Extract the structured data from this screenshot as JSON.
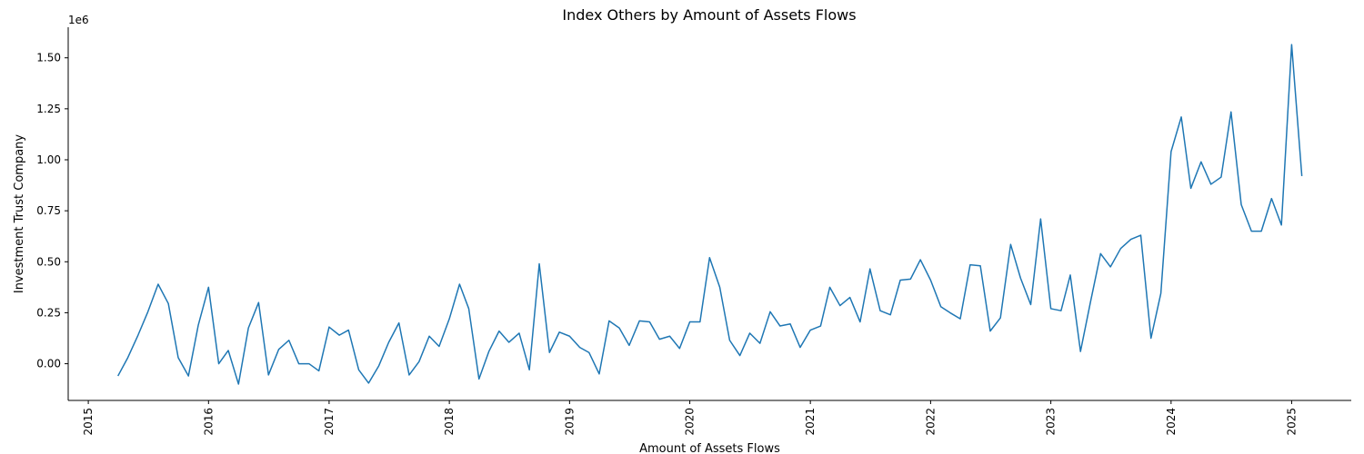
{
  "chart_data": {
    "type": "line",
    "title": "Index Others by Amount of Assets Flows",
    "xlabel": "Amount of Assets Flows",
    "ylabel": "Investment Trust Company",
    "y_offset_label": "1e6",
    "y_scale_factor": 1000000,
    "xlim": [
      "2014-11-01",
      "2025-07-01"
    ],
    "ylim": [
      -180000,
      1650000
    ],
    "x_ticks": [
      {
        "date": "2015-01-01",
        "label": "2015"
      },
      {
        "date": "2016-01-01",
        "label": "2016"
      },
      {
        "date": "2017-01-01",
        "label": "2017"
      },
      {
        "date": "2018-01-01",
        "label": "2018"
      },
      {
        "date": "2019-01-01",
        "label": "2019"
      },
      {
        "date": "2020-01-01",
        "label": "2020"
      },
      {
        "date": "2021-01-01",
        "label": "2021"
      },
      {
        "date": "2022-01-01",
        "label": "2022"
      },
      {
        "date": "2023-01-01",
        "label": "2023"
      },
      {
        "date": "2024-01-01",
        "label": "2024"
      },
      {
        "date": "2025-01-01",
        "label": "2025"
      }
    ],
    "y_ticks": [
      {
        "value": 0,
        "label": "0.00"
      },
      {
        "value": 250000,
        "label": "0.25"
      },
      {
        "value": 500000,
        "label": "0.50"
      },
      {
        "value": 750000,
        "label": "0.75"
      },
      {
        "value": 1000000,
        "label": "1.00"
      },
      {
        "value": 1250000,
        "label": "1.25"
      },
      {
        "value": 1500000,
        "label": "1.50"
      }
    ],
    "grid": false,
    "series": [
      {
        "color": "#1f77b4",
        "x": [
          "2015-04-01",
          "2015-05-01",
          "2015-06-01",
          "2015-07-01",
          "2015-08-01",
          "2015-09-01",
          "2015-10-01",
          "2015-11-01",
          "2015-12-01",
          "2016-01-01",
          "2016-02-01",
          "2016-03-01",
          "2016-04-01",
          "2016-05-01",
          "2016-06-01",
          "2016-07-01",
          "2016-08-01",
          "2016-09-01",
          "2016-10-01",
          "2016-11-01",
          "2016-12-01",
          "2017-01-01",
          "2017-02-01",
          "2017-03-01",
          "2017-04-01",
          "2017-05-01",
          "2017-06-01",
          "2017-07-01",
          "2017-08-01",
          "2017-09-01",
          "2017-10-01",
          "2017-11-01",
          "2017-12-01",
          "2018-01-01",
          "2018-02-01",
          "2018-03-01",
          "2018-04-01",
          "2018-05-01",
          "2018-06-01",
          "2018-07-01",
          "2018-08-01",
          "2018-09-01",
          "2018-10-01",
          "2018-11-01",
          "2018-12-01",
          "2019-01-01",
          "2019-02-01",
          "2019-03-01",
          "2019-04-01",
          "2019-05-01",
          "2019-06-01",
          "2019-07-01",
          "2019-08-01",
          "2019-09-01",
          "2019-10-01",
          "2019-11-01",
          "2019-12-01",
          "2020-01-01",
          "2020-02-01",
          "2020-03-01",
          "2020-04-01",
          "2020-05-01",
          "2020-06-01",
          "2020-07-01",
          "2020-08-01",
          "2020-09-01",
          "2020-10-01",
          "2020-11-01",
          "2020-12-01",
          "2021-01-01",
          "2021-02-01",
          "2021-03-01",
          "2021-04-01",
          "2021-05-01",
          "2021-06-01",
          "2021-07-01",
          "2021-08-01",
          "2021-09-01",
          "2021-10-01",
          "2021-11-01",
          "2021-12-01",
          "2022-01-01",
          "2022-02-01",
          "2022-03-01",
          "2022-04-01",
          "2022-05-01",
          "2022-06-01",
          "2022-07-01",
          "2022-08-01",
          "2022-09-01",
          "2022-10-01",
          "2022-11-01",
          "2022-12-01",
          "2023-01-01",
          "2023-02-01",
          "2023-03-01",
          "2023-04-01",
          "2023-05-01",
          "2023-06-01",
          "2023-07-01",
          "2023-08-01",
          "2023-09-01",
          "2023-10-01",
          "2023-11-01",
          "2023-12-01",
          "2024-01-01",
          "2024-02-01",
          "2024-03-01",
          "2024-04-01",
          "2024-05-01",
          "2024-06-01",
          "2024-07-01",
          "2024-08-01",
          "2024-09-01",
          "2024-10-01",
          "2024-11-01",
          "2024-12-01",
          "2025-01-01",
          "2025-02-01"
        ],
        "y": [
          -60000,
          30000,
          140000,
          255000,
          390000,
          295000,
          30000,
          -60000,
          190000,
          375000,
          0,
          65000,
          -100000,
          175000,
          300000,
          -55000,
          70000,
          115000,
          0,
          0,
          -35000,
          180000,
          140000,
          165000,
          -30000,
          -95000,
          -10000,
          105000,
          200000,
          -55000,
          10000,
          135000,
          85000,
          220000,
          390000,
          270000,
          -75000,
          60000,
          160000,
          105000,
          150000,
          -30000,
          490000,
          55000,
          155000,
          135000,
          80000,
          55000,
          -50000,
          210000,
          175000,
          90000,
          210000,
          205000,
          120000,
          135000,
          75000,
          205000,
          205000,
          520000,
          375000,
          115000,
          40000,
          150000,
          100000,
          255000,
          185000,
          195000,
          80000,
          165000,
          185000,
          375000,
          285000,
          325000,
          205000,
          465000,
          260000,
          240000,
          410000,
          415000,
          510000,
          410000,
          280000,
          250000,
          220000,
          485000,
          480000,
          160000,
          225000,
          585000,
          420000,
          290000,
          710000,
          270000,
          260000,
          435000,
          60000,
          300000,
          540000,
          475000,
          565000,
          610000,
          630000,
          125000,
          345000,
          1040000,
          1210000,
          860000,
          990000,
          880000,
          915000,
          1235000,
          780000,
          650000,
          650000,
          810000,
          680000,
          1565000,
          920000
        ]
      }
    ]
  }
}
